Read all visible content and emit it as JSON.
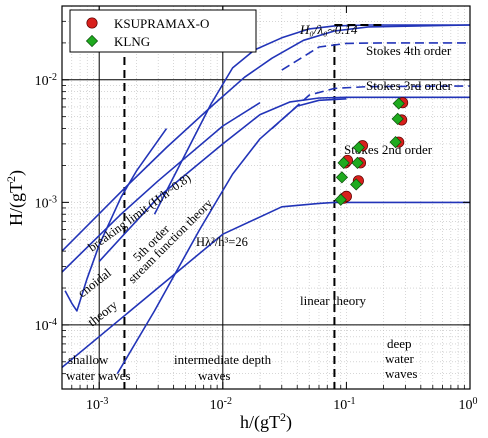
{
  "chart_data": {
    "type": "scatter",
    "xlabel": "h/(gT²)",
    "ylabel": "H/(gT²)",
    "xscale": "log",
    "yscale": "log",
    "xlim": [
      0.0005,
      1
    ],
    "ylim": [
      3e-05,
      0.04
    ],
    "grid": "minor-dotted",
    "x_ticks": [
      {
        "value": 0.001,
        "base": "10",
        "exp": "-3"
      },
      {
        "value": 0.01,
        "base": "10",
        "exp": "-2"
      },
      {
        "value": 0.1,
        "base": "10",
        "exp": "-1"
      },
      {
        "value": 1,
        "base": "10",
        "exp": "0"
      }
    ],
    "y_ticks": [
      {
        "value": 0.0001,
        "base": "10",
        "exp": "-4"
      },
      {
        "value": 0.001,
        "base": "10",
        "exp": "-3"
      },
      {
        "value": 0.01,
        "base": "10",
        "exp": "-2"
      }
    ],
    "legend": {
      "placement": "top-left",
      "entries": [
        {
          "label": "KSUPRAMAX-O",
          "marker": "circle",
          "color": "#d8201c"
        },
        {
          "label": "KLNG",
          "marker": "diamond",
          "color": "#1faa1f"
        }
      ]
    },
    "series": [
      {
        "name": "KSUPRAMAX-O",
        "marker": "circle",
        "color": "#d8201c",
        "points": [
          [
            0.095,
            0.00108
          ],
          [
            0.1,
            0.00112
          ],
          [
            0.098,
            0.0021
          ],
          [
            0.102,
            0.0022
          ],
          [
            0.125,
            0.0015
          ],
          [
            0.13,
            0.0021
          ],
          [
            0.135,
            0.0029
          ],
          [
            0.265,
            0.0031
          ],
          [
            0.28,
            0.0047
          ],
          [
            0.285,
            0.0065
          ]
        ]
      },
      {
        "name": "KLNG",
        "marker": "diamond",
        "color": "#1faa1f",
        "points": [
          [
            0.09,
            0.00105
          ],
          [
            0.092,
            0.0016
          ],
          [
            0.095,
            0.0021
          ],
          [
            0.12,
            0.0014
          ],
          [
            0.123,
            0.0021
          ],
          [
            0.126,
            0.0028
          ],
          [
            0.25,
            0.0031
          ],
          [
            0.26,
            0.0048
          ],
          [
            0.265,
            0.0064
          ]
        ]
      }
    ],
    "lines": {
      "solid": [
        {
          "id": "linear",
          "points": [
            [
              0.0005,
              4.5e-05
            ],
            [
              0.01,
              0.00055
            ],
            [
              0.03,
              0.00092
            ],
            [
              0.06,
              0.00098
            ],
            [
              0.08,
              0.001
            ],
            [
              1,
              0.001
            ]
          ]
        },
        {
          "id": "stokes-2nd-upper",
          "points": [
            [
              0.001,
              0.00033
            ],
            [
              0.003,
              0.0011
            ],
            [
              0.01,
              0.003
            ],
            [
              0.02,
              0.0052
            ],
            [
              0.035,
              0.0066
            ],
            [
              0.06,
              0.0071
            ],
            [
              0.1,
              0.0072
            ],
            [
              1,
              0.0072
            ]
          ]
        },
        {
          "id": "stokes-3rd-upper",
          "points": [
            [
              0.0028,
              0.0008
            ],
            [
              0.005,
              0.0025
            ],
            [
              0.008,
              0.0063
            ],
            [
              0.012,
              0.0125
            ],
            [
              0.018,
              0.0175
            ],
            [
              0.03,
              0.022
            ],
            [
              0.05,
              0.026
            ],
            [
              0.08,
              0.0275
            ],
            [
              0.15,
              0.028
            ],
            [
              1,
              0.028
            ]
          ]
        },
        {
          "id": "cnoidal",
          "points": [
            [
              0.00053,
              0.00019
            ],
            [
              0.0006,
              0.00015
            ],
            [
              0.00066,
              0.00013
            ],
            [
              0.0008,
              0.00024
            ],
            [
              0.001,
              0.00045
            ],
            [
              0.0015,
              0.0011
            ],
            [
              0.002,
              0.0018
            ],
            [
              0.0035,
              0.004
            ]
          ]
        },
        {
          "id": "breaking-limit-1",
          "points": [
            [
              0.0005,
              0.0004
            ],
            [
              0.0016,
              0.0013
            ],
            [
              0.0035,
              0.0028
            ],
            [
              0.008,
              0.006
            ],
            [
              0.015,
              0.0105
            ],
            [
              0.025,
              0.015
            ],
            [
              0.045,
              0.021
            ],
            [
              0.08,
              0.025
            ],
            [
              0.15,
              0.027
            ],
            [
              1,
              0.028
            ]
          ]
        },
        {
          "id": "breaking-limit-2",
          "points": [
            [
              0.0005,
              0.00027
            ],
            [
              0.0015,
              0.0008
            ],
            [
              0.003,
              0.0015
            ],
            [
              0.01,
              0.0042
            ],
            [
              0.02,
              0.0065
            ]
          ]
        },
        {
          "id": "h-lambda",
          "points": [
            [
              0.0014,
              4e-05
            ],
            [
              0.0028,
              0.00013
            ],
            [
              0.0065,
              0.0006
            ],
            [
              0.012,
              0.0017
            ],
            [
              0.02,
              0.0033
            ],
            [
              0.04,
              0.0061
            ],
            [
              0.06,
              0.0068
            ],
            [
              0.1,
              0.007
            ]
          ]
        }
      ],
      "dashed": [
        {
          "id": "stokes-3rd-dashed",
          "points": [
            [
              0.025,
              0.004
            ],
            [
              0.05,
              0.0075
            ],
            [
              0.08,
              0.0085
            ],
            [
              0.15,
              0.0088
            ],
            [
              1,
              0.0089
            ]
          ]
        },
        {
          "id": "stokes-4th-dashed",
          "points": [
            [
              0.03,
              0.012
            ],
            [
              0.06,
              0.0185
            ],
            [
              0.1,
              0.0198
            ],
            [
              0.2,
              0.02
            ],
            [
              1,
              0.02
            ]
          ]
        },
        {
          "id": "h0-14",
          "points": [
            [
              0.08,
              0.028
            ],
            [
              0.2,
              0.028
            ]
          ]
        }
      ],
      "vertical_dashed": [
        0.0016,
        0.08
      ],
      "vertical_solid": [
        0.001,
        0.01
      ],
      "horizontal_solid": [
        0.0001,
        0.01
      ]
    },
    "annotations": {
      "h0_lambda": "H₀/λ₀~0.14",
      "stokes4": "Stokes 4th order",
      "stokes3": "Stokes 3rd order",
      "stokes2": "Stokes 2nd order",
      "breaking": "breaking limit (H/h~0.8)",
      "fifth_order": "5th order",
      "stream_function": "stream function theory",
      "h_lambda_eq": "Hλ²/h³=26",
      "cnoidal1": "cnoidal",
      "cnoidal2": "theory",
      "linear": "linear theory",
      "shallow1": "shallow",
      "shallow2": "water waves",
      "intermediate1": "intermediate depth",
      "intermediate2": "waves",
      "deep1": "deep",
      "deep2": "water",
      "deep3": "waves"
    }
  }
}
